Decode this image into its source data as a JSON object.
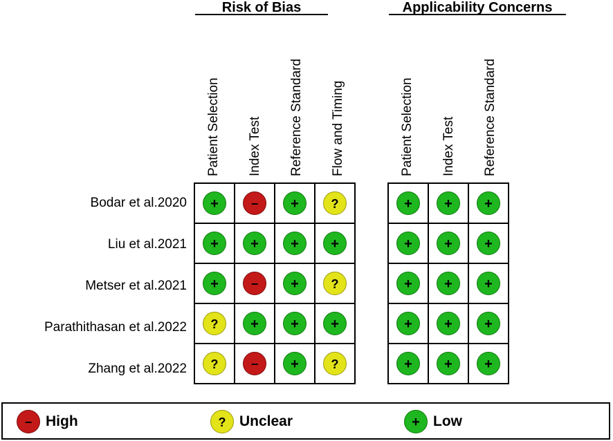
{
  "groups": {
    "risk_of_bias": "Risk of Bias",
    "applicability": "Applicability Concerns"
  },
  "risk_columns": [
    "Patient Selection",
    "Index Test",
    "Reference Standard",
    "Flow and Timing"
  ],
  "applicability_columns": [
    "Patient Selection",
    "Index Test",
    "Reference Standard"
  ],
  "studies": [
    {
      "name": "Bodar et al.2020",
      "risk": [
        "low",
        "high",
        "low",
        "unclear"
      ],
      "applicability": [
        "low",
        "low",
        "low"
      ]
    },
    {
      "name": "Liu et al.2021",
      "risk": [
        "low",
        "low",
        "low",
        "low"
      ],
      "applicability": [
        "low",
        "low",
        "low"
      ]
    },
    {
      "name": "Metser et al.2021",
      "risk": [
        "low",
        "high",
        "low",
        "unclear"
      ],
      "applicability": [
        "low",
        "low",
        "low"
      ]
    },
    {
      "name": "Parathithasan et al.2022",
      "risk": [
        "unclear",
        "low",
        "low",
        "low"
      ],
      "applicability": [
        "low",
        "low",
        "low"
      ]
    },
    {
      "name": "Zhang et al.2022",
      "risk": [
        "unclear",
        "high",
        "low",
        "unclear"
      ],
      "applicability": [
        "low",
        "low",
        "low"
      ]
    }
  ],
  "symbols": {
    "low": "+",
    "high": "−",
    "unclear": "?"
  },
  "colors": {
    "low": "#1fb71f",
    "high": "#c41919",
    "unclear": "#e3e31a"
  },
  "legend": {
    "high": "High",
    "unclear": "Unclear",
    "low": "Low"
  }
}
